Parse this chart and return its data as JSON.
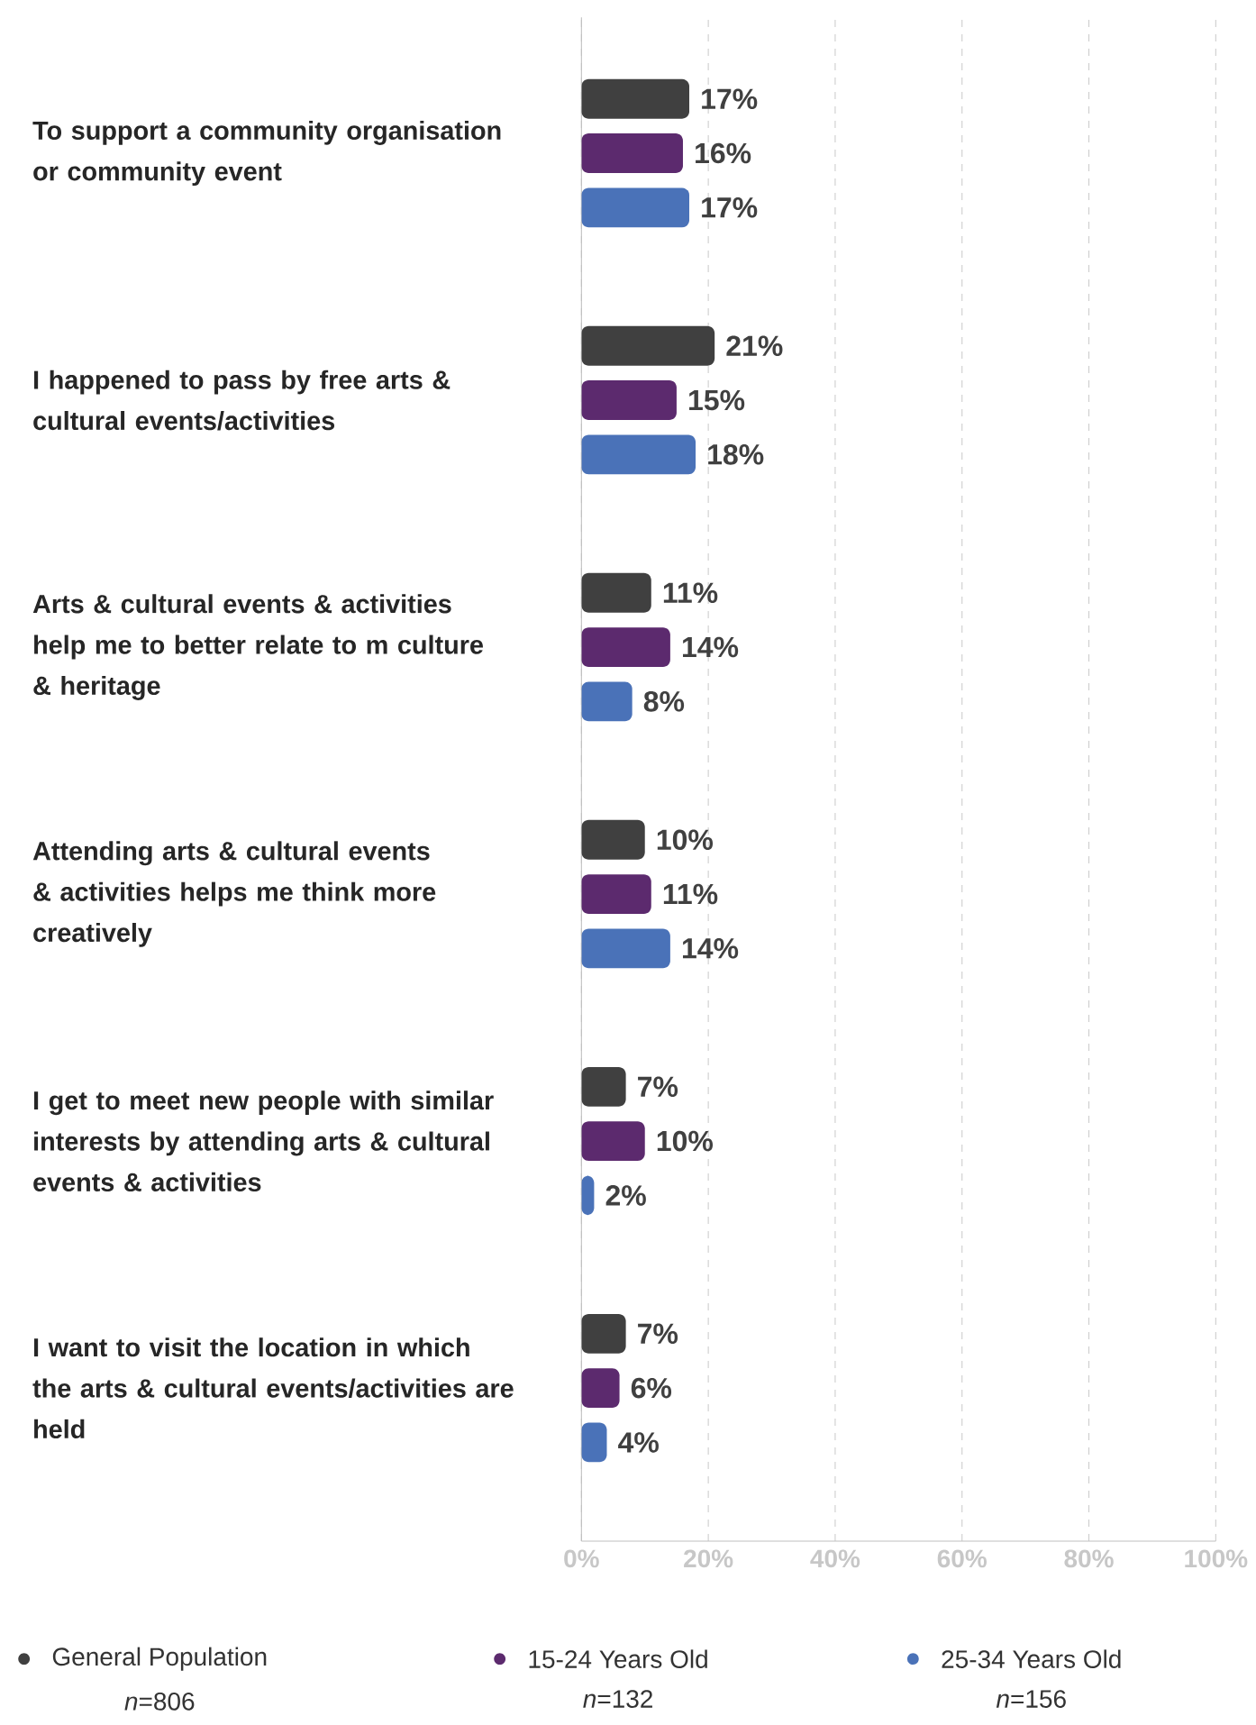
{
  "chart_data": {
    "type": "bar",
    "orientation": "horizontal",
    "categories": [
      "To support a community organisation or community event",
      "I happened to pass by free arts & cultural events/activities",
      "Arts & cultural events & activities help me to better relate to m culture & heritage",
      "Attending arts & cultural events & activities helps me think more creatively",
      "I get to meet new people with similar interests by attending arts & cultural events & activities",
      "I want to visit the location in which the arts & cultural events/activities are held"
    ],
    "series": [
      {
        "name": "General Population",
        "color": "#404040",
        "values": [
          17,
          21,
          11,
          10,
          7,
          7
        ],
        "value_labels": [
          "17%",
          "21%",
          "11%",
          "10%",
          "7%",
          "7%"
        ]
      },
      {
        "name": "15-24 Years Old",
        "color": "#5c2a6e",
        "values": [
          16,
          15,
          14,
          11,
          10,
          6
        ],
        "value_labels": [
          "16%",
          "15%",
          "14%",
          "11%",
          "10%",
          "6%"
        ]
      },
      {
        "name": "25-34 Years Old",
        "color": "#4a72b8",
        "values": [
          17,
          18,
          8,
          14,
          2,
          4
        ],
        "value_labels": [
          "17%",
          "18%",
          "8%",
          "14%",
          "2%",
          "4%"
        ]
      }
    ],
    "xlim": [
      0,
      100
    ],
    "xticks": [
      {
        "value": 0,
        "label": "0%"
      },
      {
        "value": 20,
        "label": "20%"
      },
      {
        "value": 40,
        "label": "40%"
      },
      {
        "value": 60,
        "label": "60%"
      },
      {
        "value": 80,
        "label": "80%"
      },
      {
        "value": 100,
        "label": "100%"
      }
    ],
    "grid": "x",
    "legend": "bottom",
    "annotations": [
      "*n*=806",
      "*n*=132",
      "*n*=156"
    ]
  }
}
